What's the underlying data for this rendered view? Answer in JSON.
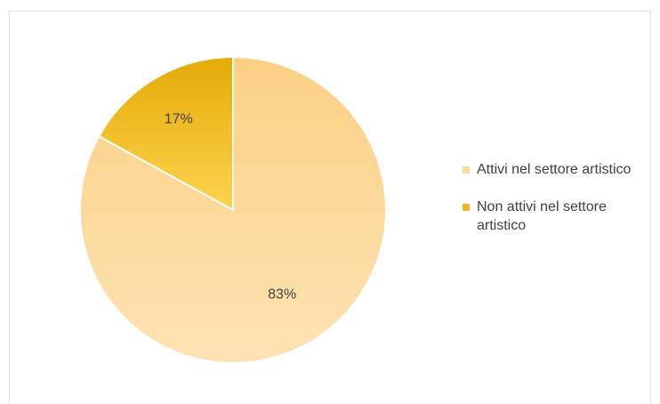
{
  "chart_data": {
    "type": "pie",
    "title": "",
    "categories": [
      "Attivi nel settore artistico",
      "Non attivi nel settore artistico"
    ],
    "values": [
      83,
      17
    ],
    "labels": [
      "83%",
      "17%"
    ],
    "colors": [
      "#fcd899",
      "#efb824"
    ],
    "legend_position": "right"
  },
  "legend": {
    "items": [
      {
        "label": "Attivi nel settore artistico",
        "color": "#fcd899"
      },
      {
        "label": "Non attivi nel settore artistico",
        "color": "#efb824"
      }
    ]
  }
}
